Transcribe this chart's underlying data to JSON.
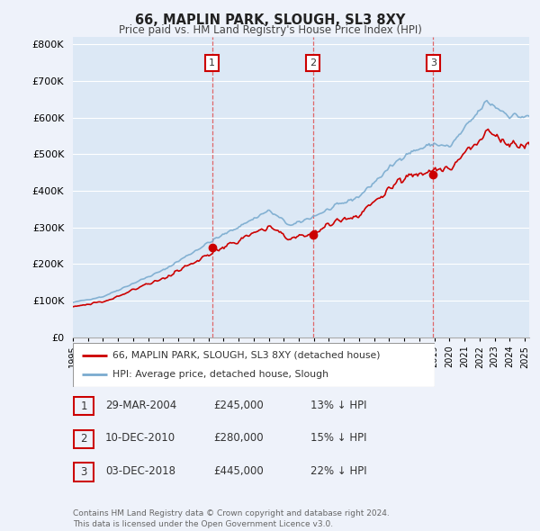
{
  "title": "66, MAPLIN PARK, SLOUGH, SL3 8XY",
  "subtitle": "Price paid vs. HM Land Registry's House Price Index (HPI)",
  "ylabel_ticks": [
    "£0",
    "£100K",
    "£200K",
    "£300K",
    "£400K",
    "£500K",
    "£600K",
    "£700K",
    "£800K"
  ],
  "ytick_values": [
    0,
    100000,
    200000,
    300000,
    400000,
    500000,
    600000,
    700000,
    800000
  ],
  "ylim": [
    0,
    820000
  ],
  "background_color": "#eef2fa",
  "plot_bg_color": "#dce8f5",
  "grid_color": "#ffffff",
  "sale_year_nums": [
    2004.24,
    2010.95,
    2018.92
  ],
  "sale_prices": [
    245000,
    280000,
    445000
  ],
  "sale_labels": [
    "1",
    "2",
    "3"
  ],
  "vline_color": "#e05050",
  "legend_label_red": "66, MAPLIN PARK, SLOUGH, SL3 8XY (detached house)",
  "legend_label_blue": "HPI: Average price, detached house, Slough",
  "table_rows": [
    [
      "1",
      "29-MAR-2004",
      "£245,000",
      "13% ↓ HPI"
    ],
    [
      "2",
      "10-DEC-2010",
      "£280,000",
      "15% ↓ HPI"
    ],
    [
      "3",
      "03-DEC-2018",
      "£445,000",
      "22% ↓ HPI"
    ]
  ],
  "footer": "Contains HM Land Registry data © Crown copyright and database right 2024.\nThis data is licensed under the Open Government Licence v3.0.",
  "red_line_color": "#cc0000",
  "blue_line_color": "#7aabcf",
  "dot_color": "#cc0000",
  "label_box_color": "#cc0000",
  "xlim_start": 1995.0,
  "xlim_end": 2025.3
}
